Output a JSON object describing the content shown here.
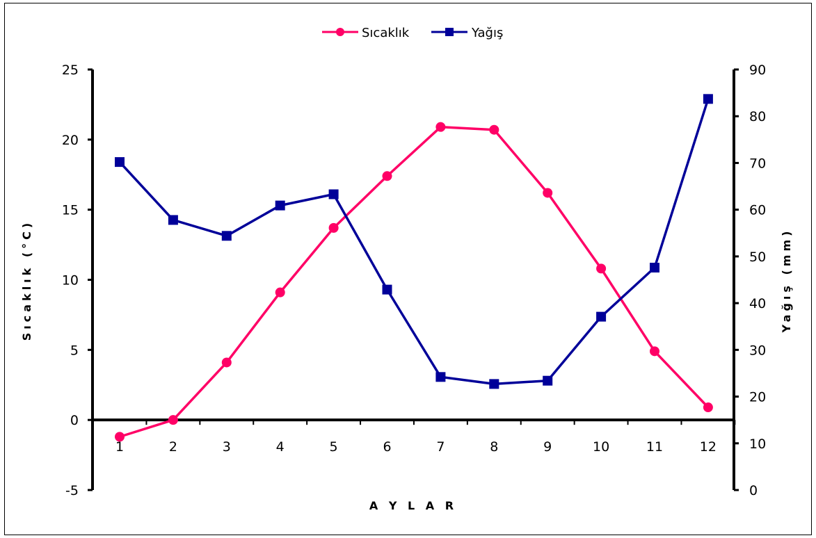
{
  "chart_data": {
    "type": "line",
    "categories": [
      "1",
      "2",
      "3",
      "4",
      "5",
      "6",
      "7",
      "8",
      "9",
      "10",
      "11",
      "12"
    ],
    "series": [
      {
        "name": "Sıcaklık",
        "axis": "left",
        "color": "#FF0066",
        "marker": "circle",
        "values": [
          -1.2,
          0.0,
          4.1,
          9.1,
          13.7,
          17.4,
          20.9,
          20.7,
          16.2,
          10.8,
          4.9,
          0.9
        ]
      },
      {
        "name": "Yağış",
        "axis": "right",
        "color": "#000099",
        "marker": "square",
        "values": [
          70.2,
          57.8,
          54.4,
          60.9,
          63.3,
          42.9,
          24.2,
          22.7,
          23.4,
          37.1,
          47.6,
          83.7
        ]
      }
    ],
    "xlabel": "A Y L A R",
    "ylabel_left": "Sıcaklık (°C)",
    "ylabel_right": "Yağış (mm)",
    "ylim_left": [
      -5,
      25
    ],
    "yticks_left": [
      -5,
      0,
      5,
      10,
      15,
      20,
      25
    ],
    "ylim_right": [
      0,
      90
    ],
    "yticks_right": [
      0,
      10,
      20,
      30,
      40,
      50,
      60,
      70,
      80,
      90
    ],
    "grid": false,
    "legend_position": "top"
  }
}
